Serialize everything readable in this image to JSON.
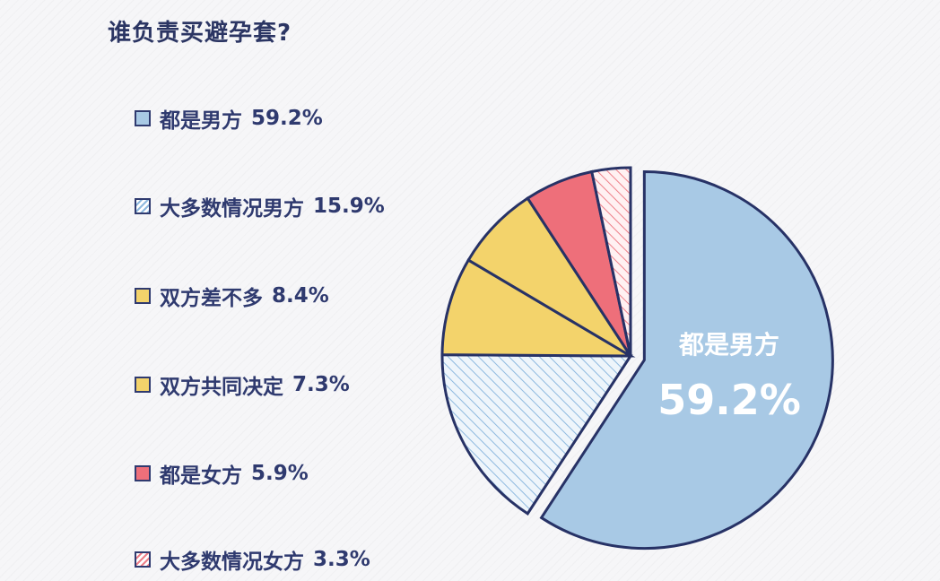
{
  "title": "谁负责买避孕套?",
  "chart_data": {
    "type": "pie",
    "title": "谁负责买避孕套?",
    "series": [
      {
        "label": "都是男方",
        "value": 59.2,
        "value_text": "59.2%",
        "color": "#a8c9e5",
        "pattern": "solid"
      },
      {
        "label": "大多数情况男方",
        "value": 15.9,
        "value_text": "15.9%",
        "color": "#cfe2f2",
        "pattern": "hatch"
      },
      {
        "label": "双方差不多",
        "value": 8.4,
        "value_text": "8.4%",
        "color": "#f3d36b",
        "pattern": "solid"
      },
      {
        "label": "双方共同决定",
        "value": 7.3,
        "value_text": "7.3%",
        "color": "#f3d36b",
        "pattern": "solid"
      },
      {
        "label": "都是女方",
        "value": 5.9,
        "value_text": "5.9%",
        "color": "#ee6f7a",
        "pattern": "solid"
      },
      {
        "label": "大多数情况女方",
        "value": 3.3,
        "value_text": "3.3%",
        "color": "#f6c8cc",
        "pattern": "hatch"
      }
    ],
    "highlight": {
      "label": "都是男方",
      "value_text": "59.2%"
    }
  }
}
